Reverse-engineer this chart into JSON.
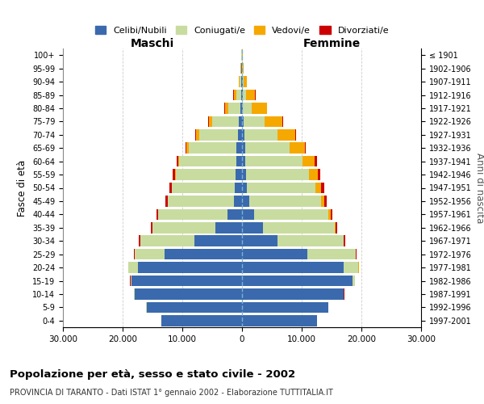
{
  "age_groups": [
    "0-4",
    "5-9",
    "10-14",
    "15-19",
    "20-24",
    "25-29",
    "30-34",
    "35-39",
    "40-44",
    "45-49",
    "50-54",
    "55-59",
    "60-64",
    "65-69",
    "70-74",
    "75-79",
    "80-84",
    "85-89",
    "90-94",
    "95-99",
    "100+"
  ],
  "birth_years": [
    "1997-2001",
    "1992-1996",
    "1987-1991",
    "1982-1986",
    "1977-1981",
    "1972-1976",
    "1967-1971",
    "1962-1966",
    "1957-1961",
    "1952-1956",
    "1947-1951",
    "1942-1946",
    "1937-1941",
    "1932-1936",
    "1927-1931",
    "1922-1926",
    "1917-1921",
    "1912-1916",
    "1907-1911",
    "1902-1906",
    "≤ 1901"
  ],
  "male_celibi": [
    13500,
    16000,
    18000,
    18500,
    17500,
    13000,
    8000,
    4500,
    2500,
    1400,
    1200,
    1100,
    1000,
    900,
    700,
    500,
    300,
    200,
    120,
    80,
    50
  ],
  "male_coniugati": [
    5,
    20,
    50,
    200,
    1500,
    5000,
    9000,
    10500,
    11500,
    11000,
    10500,
    10000,
    9500,
    8000,
    6500,
    4500,
    2000,
    800,
    300,
    100,
    50
  ],
  "male_vedovi": [
    1,
    1,
    2,
    5,
    10,
    20,
    30,
    40,
    50,
    80,
    100,
    150,
    200,
    400,
    500,
    600,
    600,
    400,
    150,
    60,
    20
  ],
  "male_divorziati": [
    1,
    2,
    5,
    20,
    50,
    100,
    200,
    250,
    300,
    350,
    400,
    350,
    300,
    120,
    100,
    80,
    40,
    30,
    20,
    10,
    5
  ],
  "female_celibi": [
    12500,
    14500,
    17000,
    18500,
    17000,
    11000,
    6000,
    3500,
    2000,
    1200,
    800,
    700,
    600,
    500,
    400,
    300,
    150,
    100,
    80,
    50,
    30
  ],
  "female_coniugati": [
    5,
    20,
    80,
    400,
    2500,
    8000,
    11000,
    12000,
    12500,
    12000,
    11500,
    10500,
    9500,
    7500,
    5500,
    3500,
    1500,
    600,
    200,
    80,
    30
  ],
  "female_vedovi": [
    1,
    2,
    5,
    10,
    30,
    50,
    80,
    150,
    300,
    600,
    1000,
    1500,
    2000,
    2500,
    3000,
    3000,
    2500,
    1500,
    500,
    150,
    50
  ],
  "female_divorziati": [
    1,
    3,
    10,
    30,
    80,
    150,
    250,
    350,
    400,
    450,
    500,
    450,
    400,
    200,
    150,
    100,
    60,
    40,
    20,
    10,
    5
  ],
  "colors": {
    "celibi": "#3a6aad",
    "coniugati": "#c8dca0",
    "vedovi": "#f5a800",
    "divorziati": "#cc0000"
  },
  "xlim": 30000,
  "title": "Popolazione per età, sesso e stato civile - 2002",
  "subtitle": "PROVINCIA DI TARANTO - Dati ISTAT 1° gennaio 2002 - Elaborazione TUTTITALIA.IT",
  "ylabel_left": "Fasce di età",
  "ylabel_right": "Anni di nascita",
  "xlabel_left": "Maschi",
  "xlabel_right": "Femmine",
  "legend_labels": [
    "Celibi/Nubili",
    "Coniugati/e",
    "Vedovi/e",
    "Divorziati/e"
  ],
  "xtick_labels": [
    "30.000",
    "20.000",
    "10.000",
    "0",
    "10.000",
    "20.000",
    "30.000"
  ],
  "xtick_values": [
    -30000,
    -20000,
    -10000,
    0,
    10000,
    20000,
    30000
  ]
}
